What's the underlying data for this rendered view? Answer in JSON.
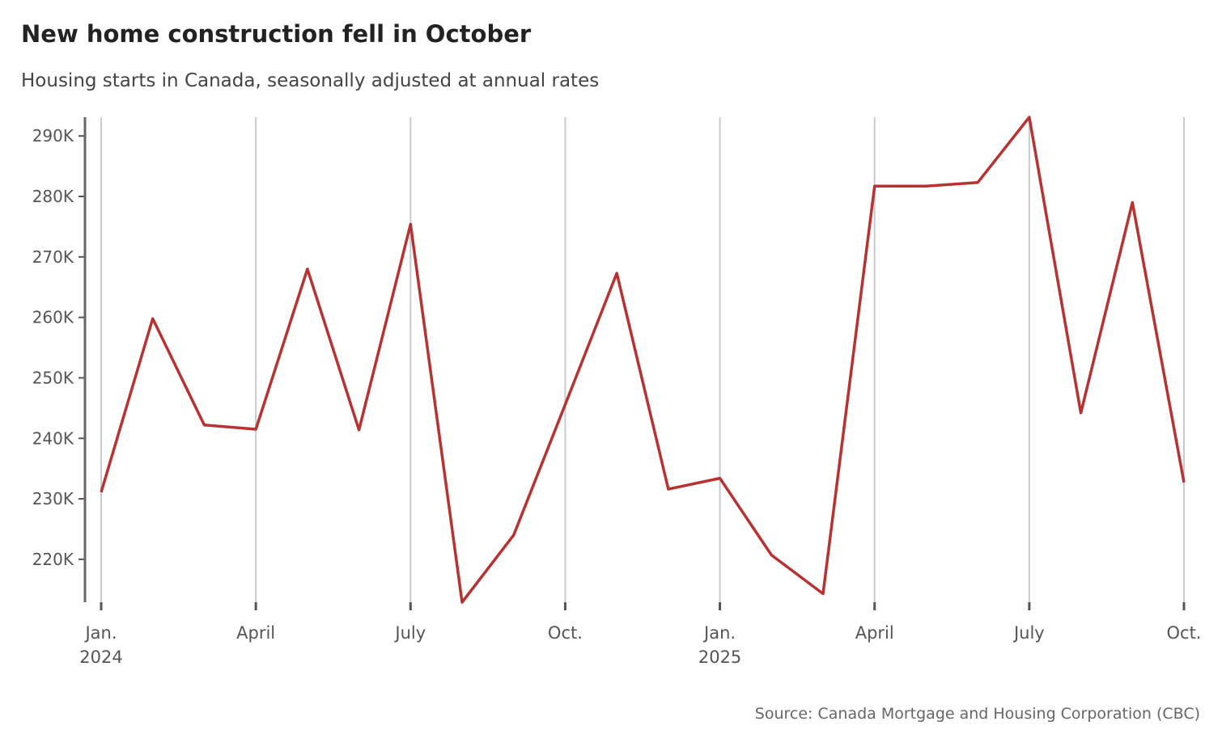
{
  "chart_data": {
    "type": "line",
    "title": "New home construction fell in October",
    "subtitle": "Housing starts in Canada, seasonally adjusted at annual rates",
    "source": "Source: Canada Mortgage and Housing Corporation (CBC)",
    "categories": [
      "Jan.\n2024",
      null,
      null,
      "April",
      null,
      null,
      "July",
      null,
      null,
      "Oct.",
      null,
      null,
      "Jan.\n2025",
      null,
      null,
      "April",
      null,
      null,
      "July",
      null,
      null,
      "Oct."
    ],
    "series": [
      {
        "name": "Housing starts",
        "color": "#b83232",
        "values": [
          231100,
          259800,
          242200,
          241500,
          268000,
          241400,
          275400,
          212900,
          224000,
          245600,
          267300,
          231600,
          233400,
          220700,
          214300,
          281700,
          281700,
          282300,
          293100,
          244200,
          279000,
          232700
        ]
      }
    ],
    "ylim": [
      212900,
      293100
    ],
    "yticks": [
      {
        "value": 220000,
        "label": "220K"
      },
      {
        "value": 230000,
        "label": "230K"
      },
      {
        "value": 240000,
        "label": "240K"
      },
      {
        "value": 250000,
        "label": "250K"
      },
      {
        "value": 260000,
        "label": "260K"
      },
      {
        "value": 270000,
        "label": "270K"
      },
      {
        "value": 280000,
        "label": "280K"
      },
      {
        "value": 290000,
        "label": "290K"
      }
    ],
    "grid": true
  }
}
